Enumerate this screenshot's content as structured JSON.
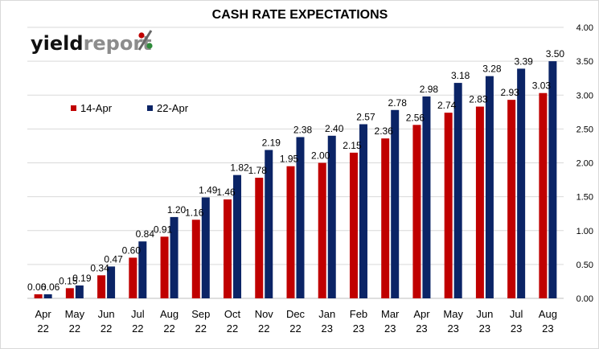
{
  "chart_data": {
    "type": "bar",
    "title": "CASH RATE EXPECTATIONS",
    "logo": {
      "part1": "yield",
      "part2": "report",
      "symbol": "%"
    },
    "categories": [
      [
        "Apr",
        "22"
      ],
      [
        "May",
        "22"
      ],
      [
        "Jun",
        "22"
      ],
      [
        "Jul",
        "22"
      ],
      [
        "Aug",
        "22"
      ],
      [
        "Sep",
        "22"
      ],
      [
        "Oct",
        "22"
      ],
      [
        "Nov",
        "22"
      ],
      [
        "Dec",
        "22"
      ],
      [
        "Jan",
        "23"
      ],
      [
        "Feb",
        "23"
      ],
      [
        "Mar",
        "23"
      ],
      [
        "Apr",
        "23"
      ],
      [
        "May",
        "23"
      ],
      [
        "Jun",
        "23"
      ],
      [
        "Jul",
        "23"
      ],
      [
        "Aug",
        "23"
      ]
    ],
    "series": [
      {
        "name": "14-Apr",
        "color": "#c00000",
        "values": [
          0.06,
          0.15,
          0.34,
          0.6,
          0.91,
          1.16,
          1.46,
          1.78,
          1.95,
          2.0,
          2.15,
          2.36,
          2.56,
          2.74,
          2.83,
          2.93,
          3.03
        ],
        "labels": [
          "0.06",
          "0.15",
          "0.34",
          "0.60",
          "0.91",
          "1.16",
          "1.46",
          "1.78",
          "1.95",
          "2.00",
          "2.15",
          "2.36",
          "2.56",
          "2.74",
          "2.83",
          "2.93",
          "3.03"
        ]
      },
      {
        "name": "22-Apr",
        "color": "#0b2466",
        "values": [
          0.06,
          0.19,
          0.47,
          0.84,
          1.2,
          1.49,
          1.82,
          2.19,
          2.38,
          2.4,
          2.57,
          2.78,
          2.98,
          3.18,
          3.28,
          3.39,
          3.5
        ],
        "labels": [
          "0.06",
          "0.19",
          "0.47",
          "0.84",
          "1.20",
          "1.49",
          "1.82",
          "2.19",
          "2.38",
          "2.40",
          "2.57",
          "2.78",
          "2.98",
          "3.18",
          "3.28",
          "3.39",
          "3.50"
        ]
      }
    ],
    "ylim": [
      0,
      4
    ],
    "yticks": [
      "0.00",
      "0.50",
      "1.00",
      "1.50",
      "2.00",
      "2.50",
      "3.00",
      "3.50",
      "4.00"
    ],
    "y_axis_side": "right",
    "grid": true,
    "legend_position": "top-left"
  }
}
